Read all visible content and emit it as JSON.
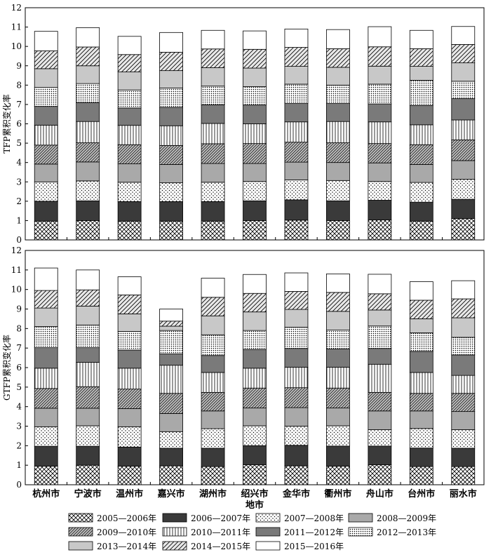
{
  "chart_data": {
    "type": "bar",
    "stacked": true,
    "xlabel": "地市",
    "categories": [
      "杭州市",
      "宁波市",
      "温州市",
      "嘉兴市",
      "湖州市",
      "绍兴市",
      "金华市",
      "衢州市",
      "舟山市",
      "台州市",
      "丽水市"
    ],
    "legend": {
      "placement": "bottom",
      "entries": [
        "2005—2006年",
        "2006—2007年",
        "2007—2008年",
        "2008—2009年",
        "2009—2010年",
        "2010—2011年",
        "2011—2012年",
        "2012—2013年",
        "2013—2014年",
        "2014—2015年",
        "2015—2016年"
      ]
    },
    "series_styles": [
      {
        "pattern": "crosshatch-diag",
        "fill": "#ffffff"
      },
      {
        "pattern": "solid",
        "fill": "#3a3a3a"
      },
      {
        "pattern": "dots",
        "fill": "#ffffff"
      },
      {
        "pattern": "solid",
        "fill": "#a9a9a9"
      },
      {
        "pattern": "diag-dense",
        "fill": "#bdbdbd"
      },
      {
        "pattern": "vertical",
        "fill": "#ffffff"
      },
      {
        "pattern": "solid",
        "fill": "#7a7a7a"
      },
      {
        "pattern": "dots-dense",
        "fill": "#ffffff"
      },
      {
        "pattern": "solid",
        "fill": "#c8c8c8"
      },
      {
        "pattern": "diag",
        "fill": "#e8e8e8"
      },
      {
        "pattern": "solid",
        "fill": "#ffffff"
      }
    ],
    "panels": [
      {
        "ylabel": "TFP累积变化率",
        "ylim": [
          0,
          12
        ],
        "yticks": [
          0,
          1,
          2,
          3,
          4,
          5,
          6,
          7,
          8,
          9,
          10,
          11,
          12
        ],
        "cumulative_tops": [
          [
            0.97,
            2.0,
            3.0,
            3.92,
            4.9,
            5.93,
            6.9,
            7.88,
            8.85,
            9.77,
            10.78
          ],
          [
            1.0,
            2.02,
            3.05,
            4.03,
            5.02,
            6.12,
            7.1,
            8.08,
            9.0,
            9.97,
            10.97
          ],
          [
            0.97,
            1.98,
            2.98,
            3.93,
            4.92,
            5.92,
            6.82,
            7.75,
            8.68,
            9.58,
            10.52
          ],
          [
            0.97,
            1.98,
            2.95,
            3.9,
            4.88,
            5.9,
            6.85,
            7.85,
            8.75,
            9.7,
            10.72
          ],
          [
            0.97,
            1.98,
            2.98,
            3.95,
            4.97,
            6.02,
            6.98,
            7.95,
            8.9,
            9.87,
            10.83
          ],
          [
            1.0,
            2.02,
            3.02,
            3.95,
            4.98,
            6.0,
            6.97,
            7.92,
            8.88,
            9.85,
            10.8
          ],
          [
            1.02,
            2.07,
            3.1,
            4.02,
            5.05,
            6.1,
            7.05,
            8.05,
            8.97,
            9.95,
            10.9
          ],
          [
            1.0,
            2.02,
            3.07,
            4.0,
            5.02,
            6.12,
            7.05,
            8.0,
            8.92,
            9.88,
            10.87
          ],
          [
            1.03,
            2.05,
            3.02,
            3.98,
            4.98,
            6.1,
            7.03,
            8.05,
            8.98,
            9.98,
            11.02
          ],
          [
            0.97,
            1.95,
            2.97,
            3.9,
            4.92,
            5.95,
            6.95,
            8.25,
            8.97,
            9.88,
            10.83
          ],
          [
            1.1,
            2.1,
            3.13,
            4.1,
            5.17,
            6.2,
            7.3,
            8.2,
            9.15,
            10.1,
            11.03
          ]
        ]
      },
      {
        "ylabel": "GTFP累积变化率",
        "ylim": [
          0,
          12
        ],
        "yticks": [
          0,
          1,
          2,
          3,
          4,
          5,
          6,
          7,
          8,
          9,
          10,
          11,
          12
        ],
        "cumulative_tops": [
          [
            0.95,
            1.97,
            2.97,
            3.92,
            4.93,
            5.97,
            7.02,
            8.1,
            9.05,
            9.95,
            11.1
          ],
          [
            1.0,
            1.97,
            3.02,
            3.92,
            5.02,
            6.27,
            7.02,
            8.18,
            9.15,
            9.98,
            11.0
          ],
          [
            0.95,
            1.93,
            2.97,
            3.9,
            4.9,
            5.97,
            6.9,
            7.85,
            8.75,
            9.72,
            10.65
          ],
          [
            0.97,
            1.87,
            2.72,
            3.65,
            4.68,
            6.12,
            6.7,
            7.9,
            8.12,
            8.38,
            9.0
          ],
          [
            0.93,
            1.87,
            2.87,
            3.78,
            4.73,
            5.75,
            6.62,
            7.68,
            8.65,
            9.6,
            10.58
          ],
          [
            1.02,
            2.0,
            3.02,
            3.93,
            4.95,
            5.97,
            6.93,
            7.9,
            8.85,
            9.8,
            10.77
          ],
          [
            0.97,
            2.02,
            3.0,
            3.95,
            4.97,
            6.02,
            6.98,
            8.07,
            8.98,
            9.9,
            10.85
          ],
          [
            0.95,
            1.98,
            3.02,
            3.93,
            4.95,
            6.02,
            6.95,
            7.92,
            8.88,
            9.85,
            10.8
          ],
          [
            1.02,
            1.98,
            2.82,
            3.78,
            4.73,
            6.17,
            6.98,
            8.13,
            8.95,
            9.78,
            10.78
          ],
          [
            0.93,
            1.88,
            2.88,
            3.78,
            4.68,
            5.75,
            6.83,
            7.78,
            8.5,
            9.45,
            10.4
          ],
          [
            0.93,
            1.87,
            2.82,
            3.75,
            4.68,
            5.6,
            6.65,
            7.55,
            8.55,
            9.52,
            10.45
          ]
        ]
      }
    ]
  }
}
